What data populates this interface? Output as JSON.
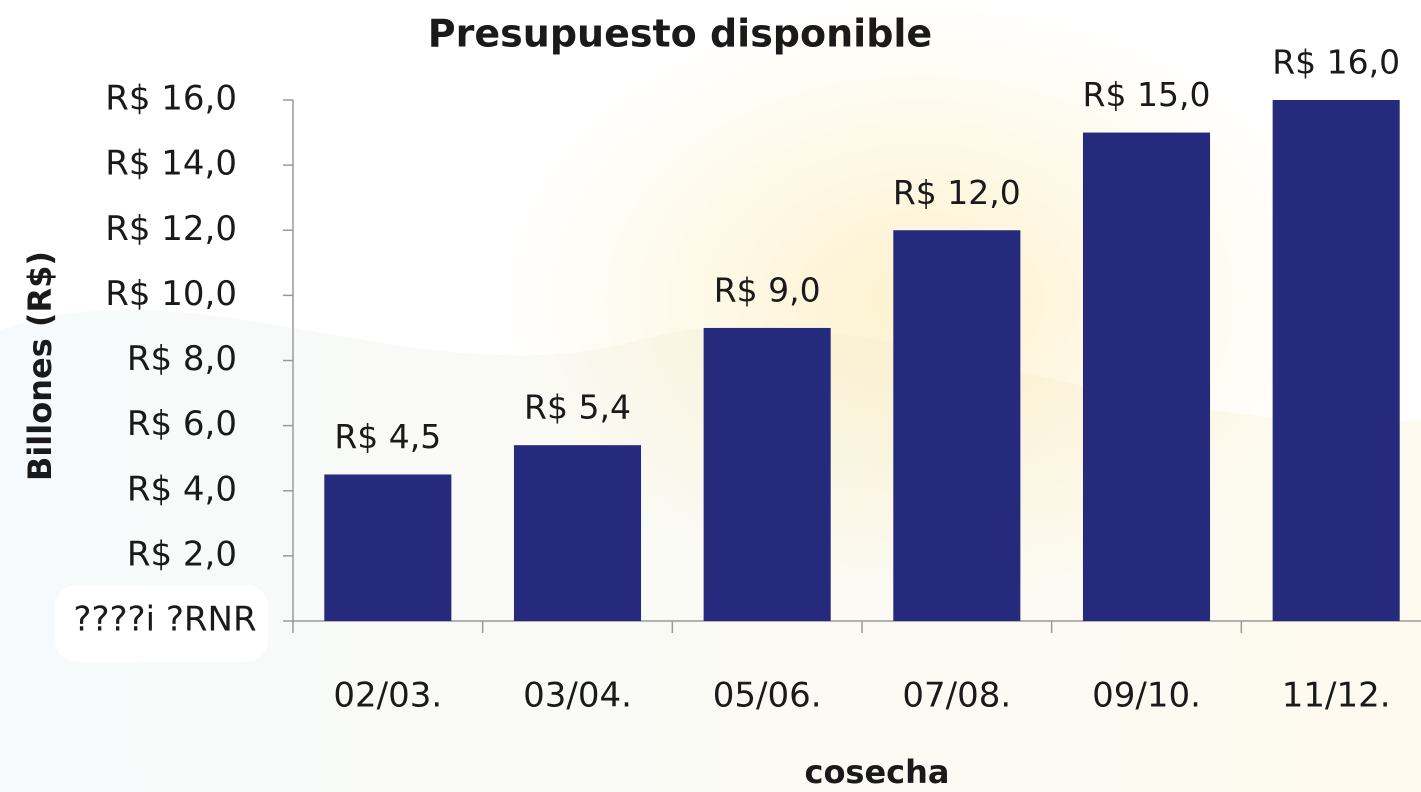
{
  "chart_data": {
    "type": "bar",
    "title": "Presupuesto disponible",
    "x_label": "cosecha",
    "y_label": "Billones (R$)",
    "categories": [
      "02/03.",
      "03/04.",
      "05/06.",
      "07/08.",
      "09/10.",
      "11/12."
    ],
    "values": [
      4.5,
      5.4,
      9.0,
      12.0,
      15.0,
      16.0
    ],
    "value_labels": [
      "R$ 4,5",
      "R$ 5,4",
      "R$ 9,0",
      "R$ 12,0",
      "R$ 15,0",
      "R$ 16,0"
    ],
    "color": "#262a7c",
    "ylim": [
      0,
      16
    ],
    "yticks": [
      {
        "value": 0,
        "label": "????i ?RNR"
      },
      {
        "value": 2,
        "label": "R$ 2,0"
      },
      {
        "value": 4,
        "label": "R$ 4,0"
      },
      {
        "value": 6,
        "label": "R$ 6,0"
      },
      {
        "value": 8,
        "label": "R$ 8,0"
      },
      {
        "value": 10,
        "label": "R$ 10,0"
      },
      {
        "value": 12,
        "label": "R$ 12,0"
      },
      {
        "value": 14,
        "label": "R$ 14,0"
      },
      {
        "value": 16,
        "label": "R$ 16,0"
      }
    ],
    "grid": false
  }
}
